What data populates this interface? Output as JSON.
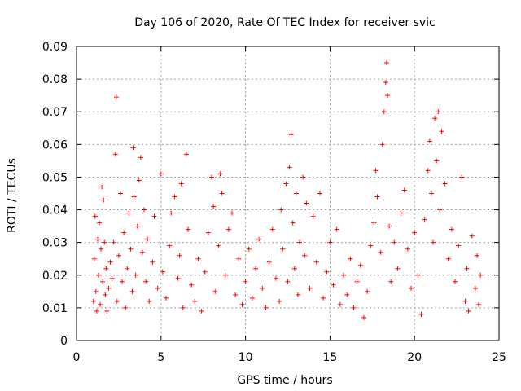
{
  "chart_data": {
    "type": "scatter",
    "title": "Day 106 of 2020, Rate Of TEC Index for receiver svic",
    "xlabel": "GPS time / hours",
    "ylabel": "ROTI / TECUs",
    "xlim": [
      0,
      25
    ],
    "ylim": [
      0,
      0.09
    ],
    "grid": true,
    "marker": "+",
    "color": "#ff0000",
    "x_ticks": [
      "0",
      "5",
      "10",
      "15",
      "20",
      "25"
    ],
    "y_ticks": [
      "0",
      "0.01",
      "0.02",
      "0.03",
      "0.04",
      "0.05",
      "0.06",
      "0.07",
      "0.08",
      "0.09"
    ],
    "series": [
      {
        "points": [
          [
            1.0,
            0.012
          ],
          [
            1.05,
            0.025
          ],
          [
            1.1,
            0.038
          ],
          [
            1.15,
            0.015
          ],
          [
            1.2,
            0.009
          ],
          [
            1.25,
            0.031
          ],
          [
            1.3,
            0.02
          ],
          [
            1.35,
            0.036
          ],
          [
            1.4,
            0.011
          ],
          [
            1.45,
            0.028
          ],
          [
            1.5,
            0.047
          ],
          [
            1.55,
            0.018
          ],
          [
            1.6,
            0.043
          ],
          [
            1.65,
            0.03
          ],
          [
            1.7,
            0.014
          ],
          [
            1.75,
            0.022
          ],
          [
            1.8,
            0.009
          ],
          [
            1.9,
            0.016
          ],
          [
            2.0,
            0.024
          ],
          [
            2.1,
            0.019
          ],
          [
            2.2,
            0.03
          ],
          [
            2.3,
            0.057
          ],
          [
            2.35,
            0.0745
          ],
          [
            2.4,
            0.012
          ],
          [
            2.5,
            0.026
          ],
          [
            2.6,
            0.045
          ],
          [
            2.7,
            0.018
          ],
          [
            2.8,
            0.033
          ],
          [
            2.9,
            0.01
          ],
          [
            3.0,
            0.022
          ],
          [
            3.1,
            0.039
          ],
          [
            3.2,
            0.028
          ],
          [
            3.3,
            0.015
          ],
          [
            3.35,
            0.059
          ],
          [
            3.4,
            0.044
          ],
          [
            3.5,
            0.02
          ],
          [
            3.6,
            0.035
          ],
          [
            3.7,
            0.049
          ],
          [
            3.8,
            0.056
          ],
          [
            3.9,
            0.027
          ],
          [
            4.0,
            0.04
          ],
          [
            4.1,
            0.018
          ],
          [
            4.2,
            0.031
          ],
          [
            4.3,
            0.012
          ],
          [
            4.5,
            0.024
          ],
          [
            4.6,
            0.038
          ],
          [
            4.8,
            0.016
          ],
          [
            5.0,
            0.051
          ],
          [
            5.1,
            0.021
          ],
          [
            5.3,
            0.013
          ],
          [
            5.5,
            0.029
          ],
          [
            5.6,
            0.039
          ],
          [
            5.8,
            0.044
          ],
          [
            6.0,
            0.019
          ],
          [
            6.1,
            0.026
          ],
          [
            6.2,
            0.048
          ],
          [
            6.3,
            0.01
          ],
          [
            6.5,
            0.057
          ],
          [
            6.6,
            0.034
          ],
          [
            6.8,
            0.017
          ],
          [
            7.0,
            0.012
          ],
          [
            7.2,
            0.025
          ],
          [
            7.4,
            0.009
          ],
          [
            7.6,
            0.021
          ],
          [
            7.8,
            0.033
          ],
          [
            8.0,
            0.05
          ],
          [
            8.1,
            0.041
          ],
          [
            8.2,
            0.015
          ],
          [
            8.4,
            0.029
          ],
          [
            8.5,
            0.051
          ],
          [
            8.6,
            0.045
          ],
          [
            8.8,
            0.02
          ],
          [
            9.0,
            0.034
          ],
          [
            9.2,
            0.039
          ],
          [
            9.4,
            0.014
          ],
          [
            9.6,
            0.025
          ],
          [
            9.8,
            0.011
          ],
          [
            10.0,
            0.018
          ],
          [
            10.2,
            0.028
          ],
          [
            10.4,
            0.013
          ],
          [
            10.6,
            0.022
          ],
          [
            10.8,
            0.031
          ],
          [
            11.0,
            0.016
          ],
          [
            11.2,
            0.01
          ],
          [
            11.4,
            0.024
          ],
          [
            11.6,
            0.034
          ],
          [
            11.8,
            0.019
          ],
          [
            12.0,
            0.012
          ],
          [
            12.1,
            0.04
          ],
          [
            12.2,
            0.028
          ],
          [
            12.4,
            0.048
          ],
          [
            12.5,
            0.018
          ],
          [
            12.6,
            0.053
          ],
          [
            12.7,
            0.063
          ],
          [
            12.8,
            0.036
          ],
          [
            12.9,
            0.022
          ],
          [
            13.0,
            0.045
          ],
          [
            13.1,
            0.014
          ],
          [
            13.2,
            0.03
          ],
          [
            13.4,
            0.05
          ],
          [
            13.5,
            0.026
          ],
          [
            13.6,
            0.042
          ],
          [
            13.8,
            0.016
          ],
          [
            14.0,
            0.038
          ],
          [
            14.2,
            0.024
          ],
          [
            14.4,
            0.045
          ],
          [
            14.6,
            0.013
          ],
          [
            14.8,
            0.021
          ],
          [
            15.0,
            0.03
          ],
          [
            15.2,
            0.017
          ],
          [
            15.4,
            0.034
          ],
          [
            15.6,
            0.011
          ],
          [
            15.8,
            0.02
          ],
          [
            16.0,
            0.014
          ],
          [
            16.2,
            0.025
          ],
          [
            16.4,
            0.01
          ],
          [
            16.6,
            0.018
          ],
          [
            16.8,
            0.023
          ],
          [
            17.0,
            0.007
          ],
          [
            17.2,
            0.015
          ],
          [
            17.4,
            0.029
          ],
          [
            17.6,
            0.036
          ],
          [
            17.7,
            0.052
          ],
          [
            17.8,
            0.044
          ],
          [
            18.0,
            0.027
          ],
          [
            18.1,
            0.06
          ],
          [
            18.2,
            0.07
          ],
          [
            18.3,
            0.079
          ],
          [
            18.35,
            0.085
          ],
          [
            18.4,
            0.075
          ],
          [
            18.5,
            0.035
          ],
          [
            18.6,
            0.018
          ],
          [
            18.8,
            0.03
          ],
          [
            19.0,
            0.022
          ],
          [
            19.2,
            0.039
          ],
          [
            19.4,
            0.046
          ],
          [
            19.6,
            0.028
          ],
          [
            19.8,
            0.016
          ],
          [
            20.0,
            0.033
          ],
          [
            20.2,
            0.02
          ],
          [
            20.4,
            0.008
          ],
          [
            20.6,
            0.037
          ],
          [
            20.8,
            0.052
          ],
          [
            20.9,
            0.061
          ],
          [
            21.0,
            0.045
          ],
          [
            21.1,
            0.03
          ],
          [
            21.2,
            0.068
          ],
          [
            21.3,
            0.055
          ],
          [
            21.4,
            0.07
          ],
          [
            21.5,
            0.04
          ],
          [
            21.6,
            0.064
          ],
          [
            21.8,
            0.048
          ],
          [
            22.0,
            0.025
          ],
          [
            22.2,
            0.034
          ],
          [
            22.4,
            0.018
          ],
          [
            22.6,
            0.029
          ],
          [
            22.8,
            0.05
          ],
          [
            23.0,
            0.012
          ],
          [
            23.1,
            0.022
          ],
          [
            23.2,
            0.009
          ],
          [
            23.4,
            0.032
          ],
          [
            23.6,
            0.016
          ],
          [
            23.7,
            0.026
          ],
          [
            23.8,
            0.011
          ],
          [
            23.9,
            0.02
          ]
        ]
      }
    ]
  }
}
